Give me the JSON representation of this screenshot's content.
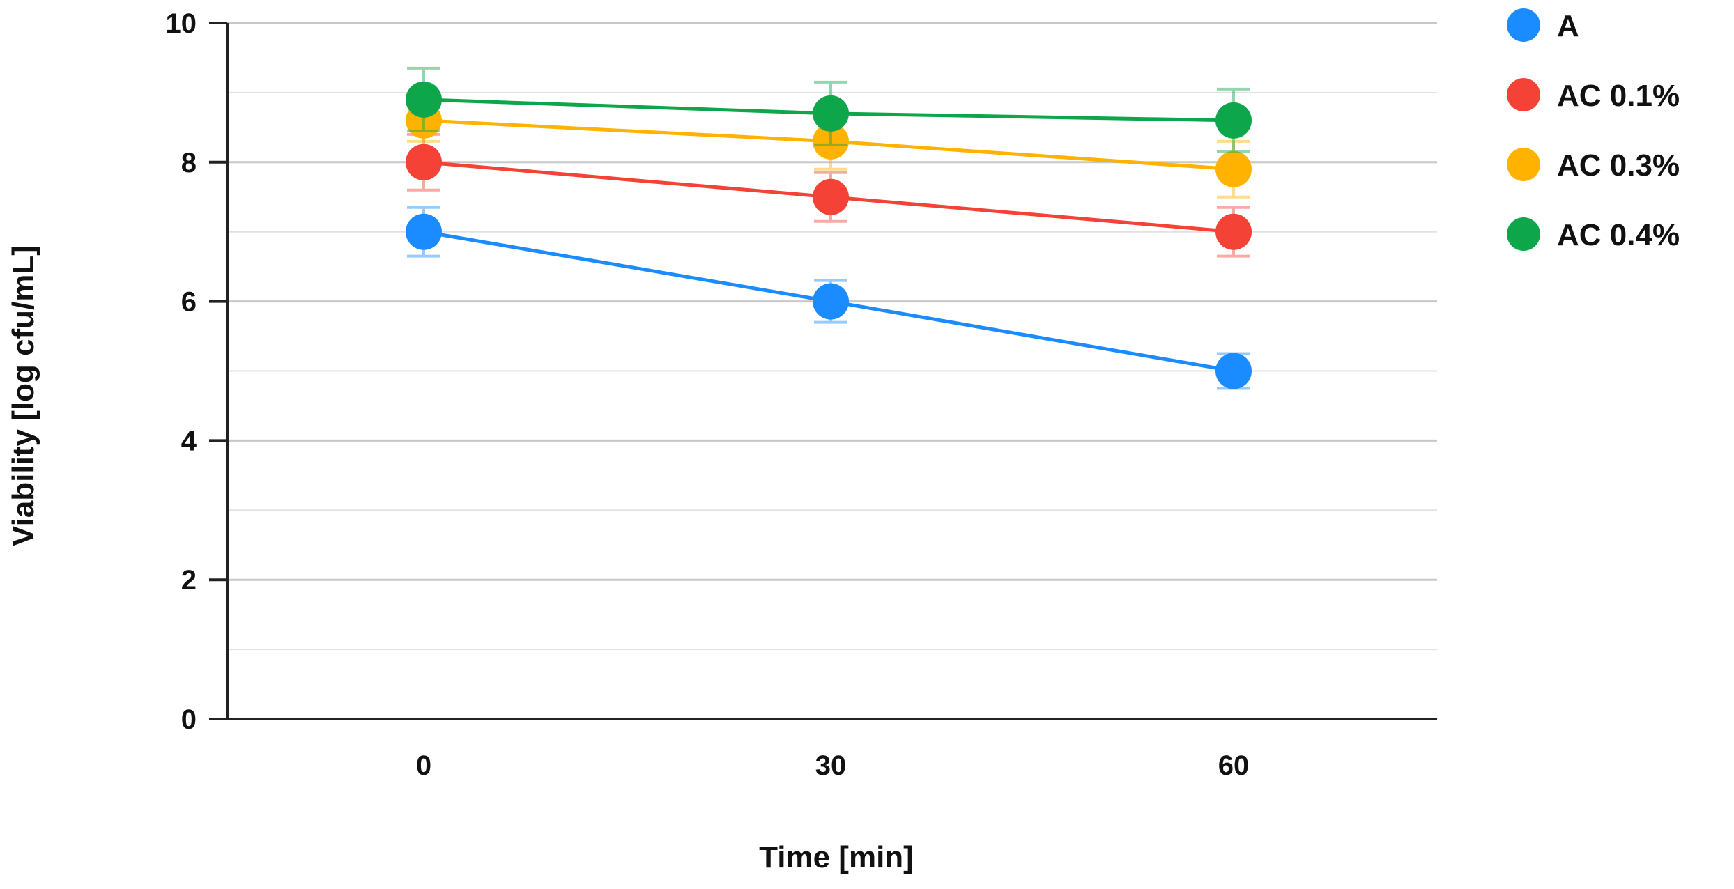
{
  "chart_data": {
    "type": "line",
    "title": "",
    "xlabel": "Time [min]",
    "ylabel": "Viability [log cfu/mL]",
    "x": [
      0,
      30,
      60
    ],
    "x_tick_labels": [
      "0",
      "30",
      "60"
    ],
    "ylim": [
      0,
      10
    ],
    "y_ticks": [
      0,
      2,
      4,
      6,
      8,
      10
    ],
    "y_tick_labels": [
      "0",
      "2",
      "4",
      "6",
      "8",
      "10"
    ],
    "grid": true,
    "legend_position": "right",
    "series": [
      {
        "name": "A",
        "color": "#1a8cff",
        "values": [
          7.0,
          6.0,
          5.0
        ],
        "errors": [
          0.35,
          0.3,
          0.25
        ]
      },
      {
        "name": "AC 0.1%",
        "color": "#f44336",
        "values": [
          8.0,
          7.5,
          7.0
        ],
        "errors": [
          0.4,
          0.35,
          0.35
        ]
      },
      {
        "name": "AC 0.3%",
        "color": "#ffb300",
        "values": [
          8.6,
          8.3,
          7.9
        ],
        "errors": [
          0.3,
          0.4,
          0.4
        ]
      },
      {
        "name": "AC 0.4%",
        "color": "#0da64a",
        "values": [
          8.9,
          8.7,
          8.6
        ],
        "errors": [
          0.45,
          0.45,
          0.45
        ]
      }
    ]
  }
}
